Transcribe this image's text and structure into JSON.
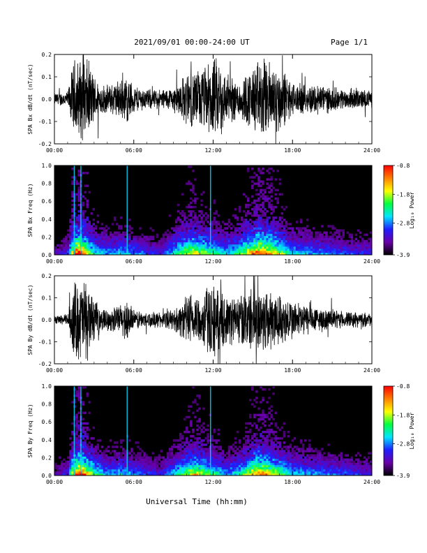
{
  "header": {
    "title": "2021/09/01  00:00-24:00 UT",
    "page": "Page 1/1"
  },
  "footer": {
    "xlabel": "Universal Time (hh:mm)"
  },
  "colors": {
    "background": "#ffffff",
    "trace": "#000000",
    "spectrogram_floor": "#000000"
  },
  "chart_data": [
    {
      "type": "line",
      "ylabel": "SPA Bx dB/dt (nT/sec)",
      "xlim": [
        0,
        24
      ],
      "ylim": [
        -0.2,
        0.2
      ],
      "xticks": [
        "00:00",
        "06:00",
        "12:00",
        "18:00",
        "24:00"
      ],
      "yticks": [
        "-0.2",
        "-0.1",
        "0.0",
        "0.1",
        "0.2"
      ],
      "envelope_hours": [
        0,
        1,
        1.5,
        2,
        2.5,
        3,
        3.5,
        4,
        5,
        5.5,
        6,
        7,
        8,
        9,
        10,
        10.5,
        11,
        11.5,
        12,
        12.5,
        13,
        14,
        15,
        15.5,
        16,
        16.5,
        17,
        17.5,
        18,
        19,
        20,
        21,
        22,
        23,
        24
      ],
      "envelope_amplitude": [
        0.03,
        0.04,
        0.2,
        0.2,
        0.2,
        0.12,
        0.08,
        0.07,
        0.1,
        0.12,
        0.07,
        0.05,
        0.05,
        0.06,
        0.13,
        0.14,
        0.15,
        0.17,
        0.2,
        0.2,
        0.12,
        0.1,
        0.16,
        0.2,
        0.2,
        0.18,
        0.17,
        0.13,
        0.08,
        0.07,
        0.08,
        0.06,
        0.05,
        0.05,
        0.04
      ]
    },
    {
      "type": "heatmap",
      "ylabel": "SPA Bx Freq (Hz)",
      "colorbar_label": "Log₁₀ Power",
      "xlim": [
        0,
        24
      ],
      "ylim": [
        0,
        1.0
      ],
      "xticks": [
        "00:00",
        "06:00",
        "12:00",
        "18:00",
        "24:00"
      ],
      "yticks": [
        "0.0",
        "0.2",
        "0.4",
        "0.6",
        "0.8",
        "1.0"
      ],
      "colorbar_range": [
        -3.9,
        -0.8
      ],
      "colorbar_ticks": [
        "-0.8",
        "-1.8",
        "-2.8",
        "-3.9"
      ],
      "colorscale": [
        "#000000",
        "#6a00a8",
        "#1e1eff",
        "#00e5ff",
        "#00ff40",
        "#ffff00",
        "#ff8000",
        "#ff0000"
      ],
      "bright_time_lines_hours": [
        1.5,
        2.0,
        5.5,
        11.8
      ],
      "activity_hours": [
        0,
        1,
        1.5,
        2,
        3,
        4,
        5,
        6,
        8,
        10,
        10.5,
        12,
        13,
        14,
        15,
        15.5,
        16,
        17,
        18,
        20,
        22,
        24
      ],
      "activity_level": [
        0.15,
        0.2,
        0.75,
        0.8,
        0.4,
        0.3,
        0.35,
        0.3,
        0.2,
        0.55,
        0.6,
        0.45,
        0.35,
        0.45,
        0.65,
        0.75,
        0.7,
        0.55,
        0.35,
        0.3,
        0.25,
        0.2
      ]
    },
    {
      "type": "line",
      "ylabel": "SPA By dB/dt (nT/sec)",
      "xlim": [
        0,
        24
      ],
      "ylim": [
        -0.2,
        0.2
      ],
      "xticks": [
        "00:00",
        "06:00",
        "12:00",
        "18:00",
        "24:00"
      ],
      "yticks": [
        "-0.2",
        "-0.1",
        "0.0",
        "0.1",
        "0.2"
      ],
      "envelope_hours": [
        0,
        1,
        1.5,
        2,
        2.5,
        3,
        3.5,
        4,
        5,
        5.5,
        6,
        7,
        8,
        9,
        10,
        10.5,
        11,
        11.5,
        12,
        12.5,
        13,
        14,
        15,
        15.5,
        16,
        16.5,
        17,
        17.5,
        18,
        19,
        20,
        21,
        22,
        23,
        24
      ],
      "envelope_amplitude": [
        0.02,
        0.03,
        0.2,
        0.2,
        0.2,
        0.1,
        0.06,
        0.05,
        0.08,
        0.11,
        0.05,
        0.04,
        0.04,
        0.05,
        0.12,
        0.14,
        0.12,
        0.17,
        0.2,
        0.14,
        0.12,
        0.13,
        0.16,
        0.18,
        0.17,
        0.15,
        0.13,
        0.12,
        0.1,
        0.08,
        0.06,
        0.05,
        0.04,
        0.04,
        0.03
      ]
    },
    {
      "type": "heatmap",
      "ylabel": "SPA By Freq (Hz)",
      "colorbar_label": "Log₁₀ Power",
      "xlim": [
        0,
        24
      ],
      "ylim": [
        0,
        1.0
      ],
      "xticks": [
        "00:00",
        "06:00",
        "12:00",
        "18:00",
        "24:00"
      ],
      "yticks": [
        "0.0",
        "0.2",
        "0.4",
        "0.6",
        "0.8",
        "1.0"
      ],
      "colorbar_range": [
        -3.9,
        -0.8
      ],
      "colorbar_ticks": [
        "-0.8",
        "-1.8",
        "-2.8",
        "-3.9"
      ],
      "colorscale": [
        "#000000",
        "#6a00a8",
        "#1e1eff",
        "#00e5ff",
        "#00ff40",
        "#ffff00",
        "#ff8000",
        "#ff0000"
      ],
      "bright_time_lines_hours": [
        1.5,
        2.0,
        5.5,
        11.8
      ],
      "activity_hours": [
        0,
        1,
        1.5,
        2,
        3,
        4,
        5,
        6,
        8,
        10,
        10.5,
        12,
        13,
        14,
        15,
        15.5,
        16,
        17,
        18,
        20,
        22,
        24
      ],
      "activity_level": [
        0.15,
        0.2,
        0.7,
        0.8,
        0.45,
        0.3,
        0.35,
        0.3,
        0.2,
        0.5,
        0.6,
        0.45,
        0.3,
        0.4,
        0.6,
        0.7,
        0.65,
        0.5,
        0.35,
        0.3,
        0.25,
        0.2
      ]
    }
  ]
}
